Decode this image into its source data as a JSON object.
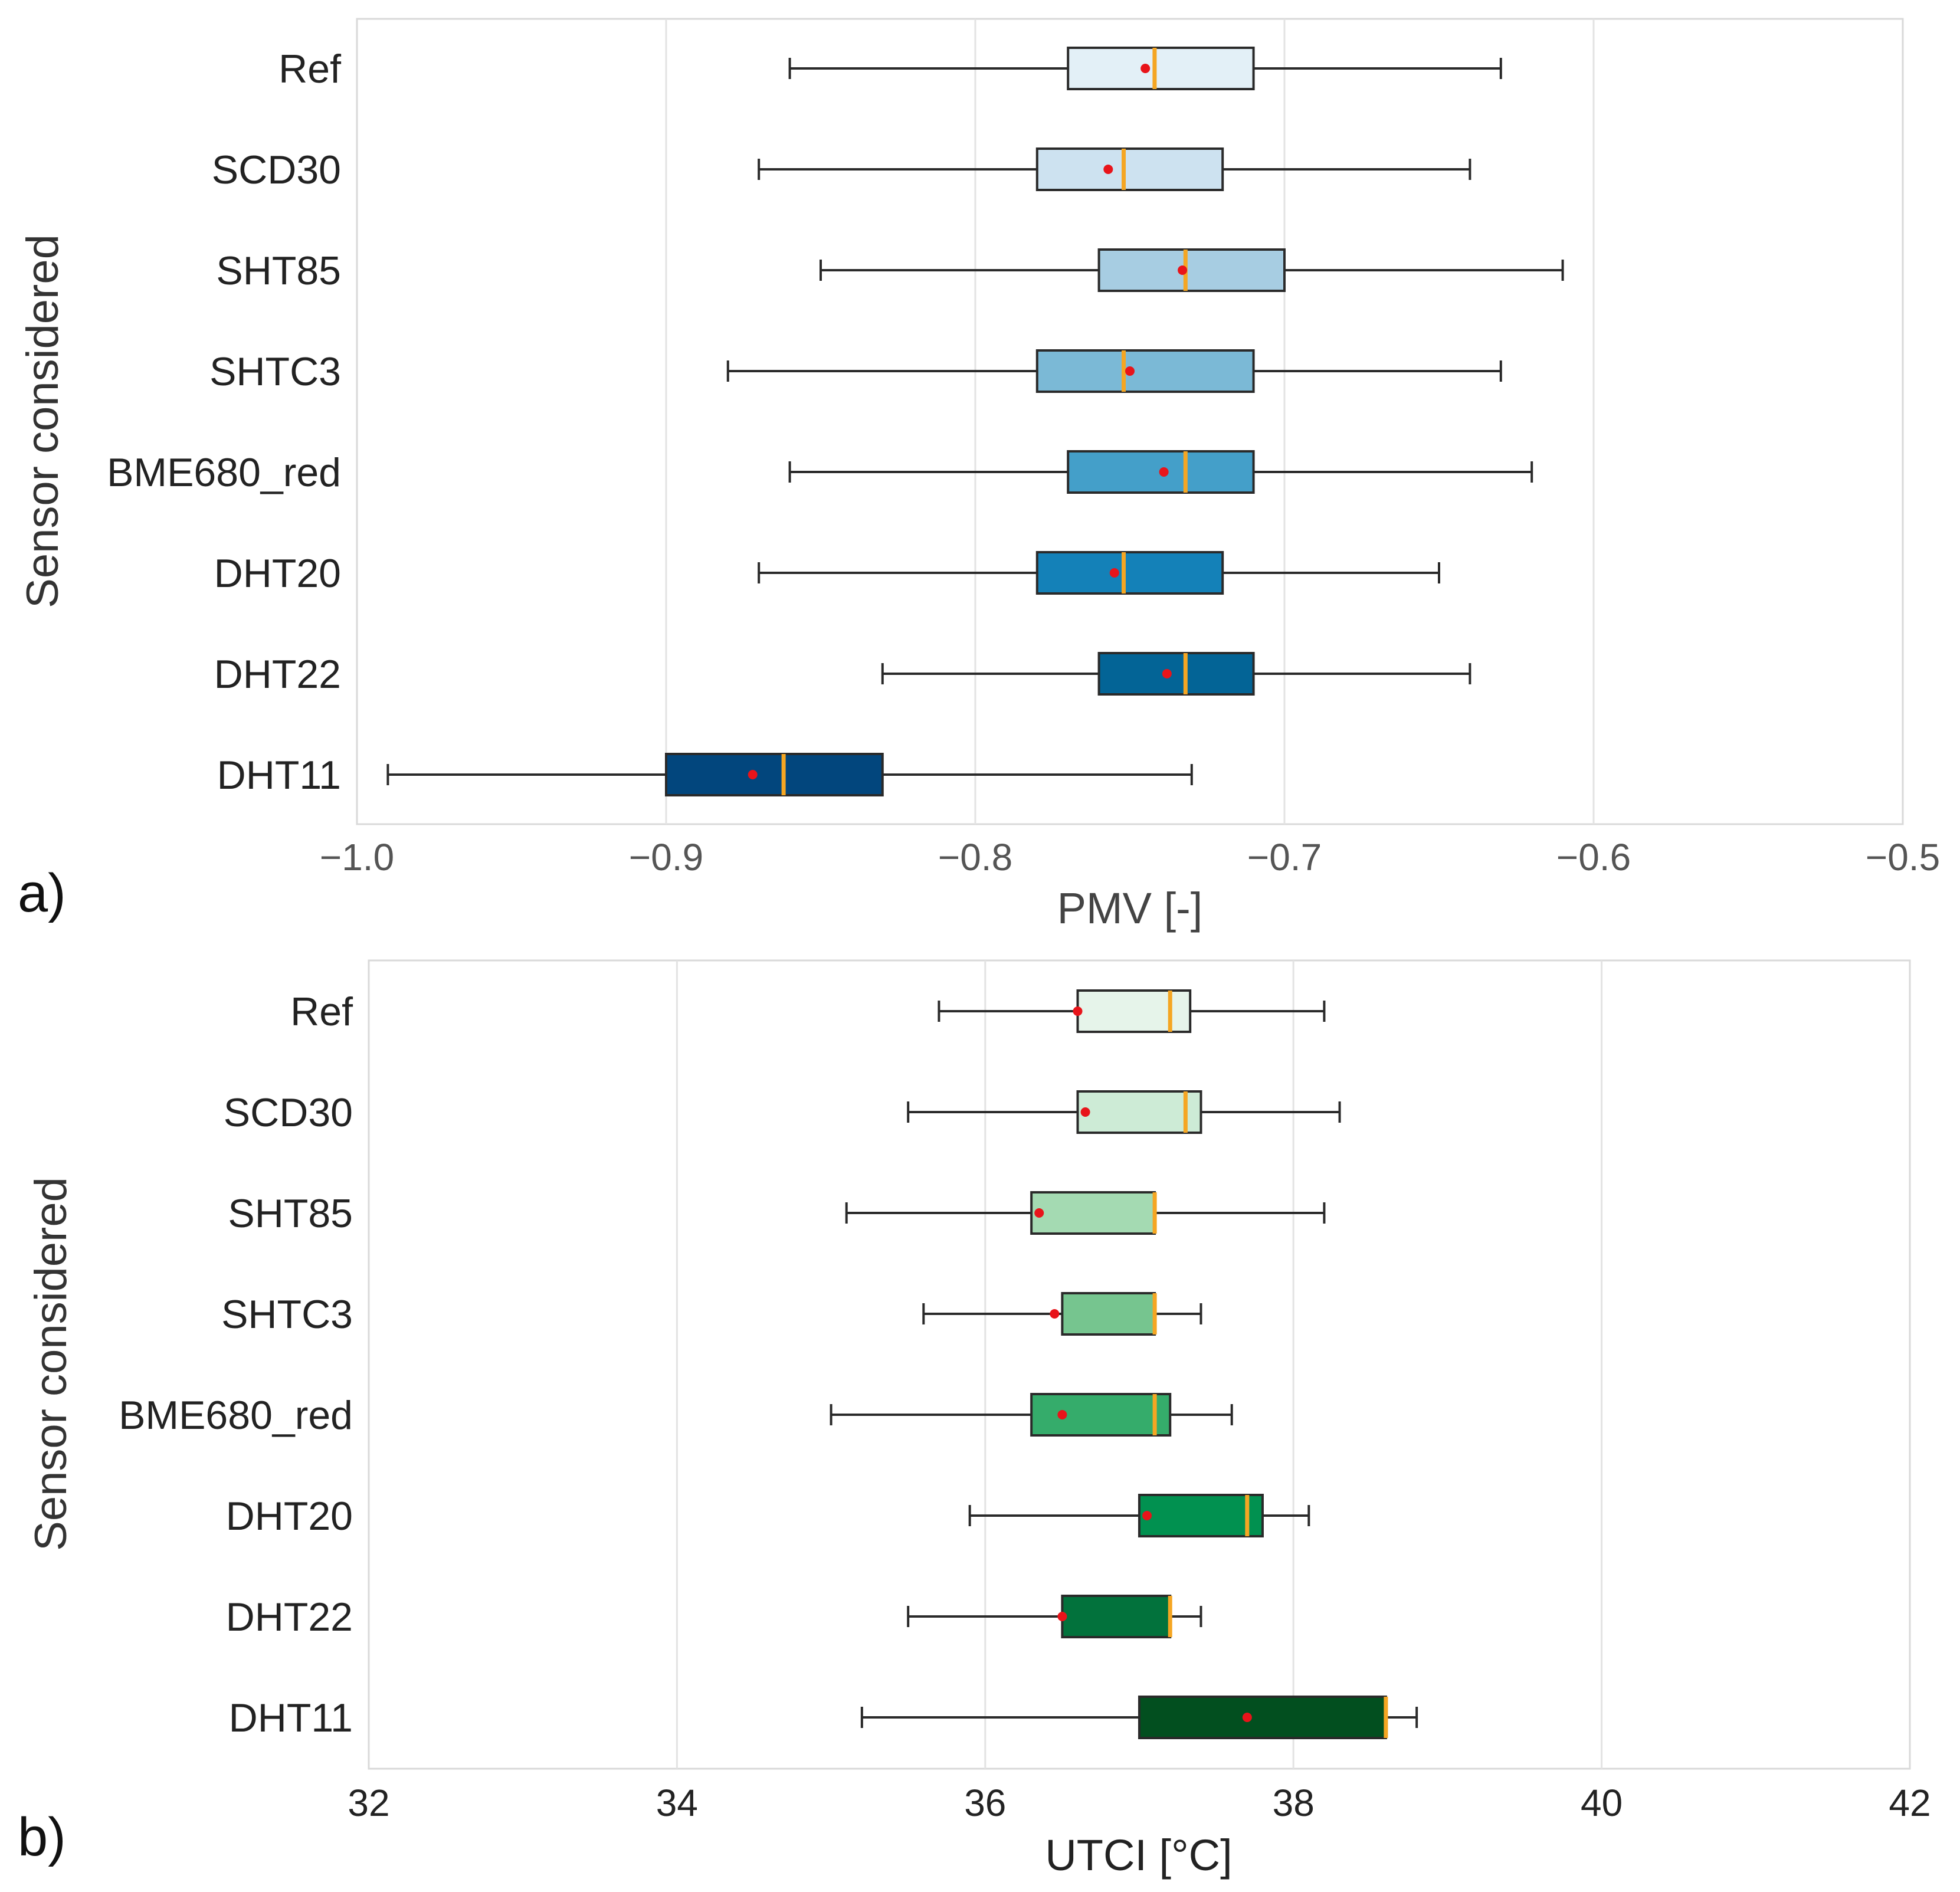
{
  "chart_data": [
    {
      "type": "box",
      "panel_label": "a)",
      "orientation": "horizontal",
      "xlabel": "PMV [-]",
      "ylabel": "Sensor considered",
      "xlim": [
        -1.0,
        -0.5
      ],
      "xticks": [
        -1.0,
        -0.9,
        -0.8,
        -0.7,
        -0.6,
        -0.5
      ],
      "xtick_labels": [
        "−1.0",
        "−0.9",
        "−0.8",
        "−0.7",
        "−0.6",
        "−0.5"
      ],
      "grid": "vertical",
      "median_color": "#f5a623",
      "mean_color": "#e8141a",
      "categories": [
        "Ref",
        "SCD30",
        "SHT85",
        "SHTC3",
        "BME680_red",
        "DHT20",
        "DHT22",
        "DHT11"
      ],
      "series": [
        {
          "name": "Ref",
          "whisker_low": -0.86,
          "q1": -0.77,
          "median": -0.742,
          "q3": -0.71,
          "whisker_high": -0.63,
          "mean": -0.745,
          "color": "#e3f0f7"
        },
        {
          "name": "SCD30",
          "whisker_low": -0.87,
          "q1": -0.78,
          "median": -0.752,
          "q3": -0.72,
          "whisker_high": -0.64,
          "mean": -0.757,
          "color": "#cde2f0"
        },
        {
          "name": "SHT85",
          "whisker_low": -0.85,
          "q1": -0.76,
          "median": -0.732,
          "q3": -0.7,
          "whisker_high": -0.61,
          "mean": -0.733,
          "color": "#a7cde2"
        },
        {
          "name": "SHTC3",
          "whisker_low": -0.88,
          "q1": -0.78,
          "median": -0.752,
          "q3": -0.71,
          "whisker_high": -0.63,
          "mean": -0.75,
          "color": "#7bb9d6"
        },
        {
          "name": "BME680_red",
          "whisker_low": -0.86,
          "q1": -0.77,
          "median": -0.732,
          "q3": -0.71,
          "whisker_high": -0.62,
          "mean": -0.739,
          "color": "#449fc9"
        },
        {
          "name": "DHT20",
          "whisker_low": -0.87,
          "q1": -0.78,
          "median": -0.752,
          "q3": -0.72,
          "whisker_high": -0.65,
          "mean": -0.755,
          "color": "#1481b8"
        },
        {
          "name": "DHT22",
          "whisker_low": -0.83,
          "q1": -0.76,
          "median": -0.732,
          "q3": -0.71,
          "whisker_high": -0.64,
          "mean": -0.738,
          "color": "#036496"
        },
        {
          "name": "DHT11",
          "whisker_low": -0.99,
          "q1": -0.9,
          "median": -0.862,
          "q3": -0.83,
          "whisker_high": -0.73,
          "mean": -0.872,
          "color": "#02467d"
        }
      ]
    },
    {
      "type": "box",
      "panel_label": "b)",
      "orientation": "horizontal",
      "xlabel": "UTCI [°C]",
      "ylabel": "Sensor considered",
      "xlim": [
        32,
        42
      ],
      "xticks": [
        32,
        34,
        36,
        38,
        40,
        42
      ],
      "xtick_labels": [
        "32",
        "34",
        "36",
        "38",
        "40",
        "42"
      ],
      "grid": "vertical",
      "median_color": "#f5a623",
      "mean_color": "#e8141a",
      "categories": [
        "Ref",
        "SCD30",
        "SHT85",
        "SHTC3",
        "BME680_red",
        "DHT20",
        "DHT22",
        "DHT11"
      ],
      "series": [
        {
          "name": "Ref",
          "whisker_low": 35.7,
          "q1": 36.6,
          "median": 37.2,
          "q3": 37.33,
          "whisker_high": 38.2,
          "mean": 36.6,
          "color": "#e6f4ea"
        },
        {
          "name": "SCD30",
          "whisker_low": 35.5,
          "q1": 36.6,
          "median": 37.3,
          "q3": 37.4,
          "whisker_high": 38.3,
          "mean": 36.65,
          "color": "#cdebd6"
        },
        {
          "name": "SHT85",
          "whisker_low": 35.1,
          "q1": 36.3,
          "median": 37.1,
          "q3": 37.1,
          "whisker_high": 38.2,
          "mean": 36.35,
          "color": "#a4dab2"
        },
        {
          "name": "SHTC3",
          "whisker_low": 35.6,
          "q1": 36.5,
          "median": 37.1,
          "q3": 37.1,
          "whisker_high": 37.4,
          "mean": 36.45,
          "color": "#76c58f"
        },
        {
          "name": "BME680_red",
          "whisker_low": 35.0,
          "q1": 36.3,
          "median": 37.1,
          "q3": 37.2,
          "whisker_high": 37.6,
          "mean": 36.5,
          "color": "#35ac6b"
        },
        {
          "name": "DHT20",
          "whisker_low": 35.9,
          "q1": 37.0,
          "median": 37.7,
          "q3": 37.8,
          "whisker_high": 38.1,
          "mean": 37.05,
          "color": "#019150"
        },
        {
          "name": "DHT22",
          "whisker_low": 35.5,
          "q1": 36.5,
          "median": 37.2,
          "q3": 37.2,
          "whisker_high": 37.4,
          "mean": 36.5,
          "color": "#02723c"
        },
        {
          "name": "DHT11",
          "whisker_low": 35.2,
          "q1": 37.0,
          "median": 38.6,
          "q3": 38.6,
          "whisker_high": 38.8,
          "mean": 37.7,
          "color": "#024f1f"
        }
      ]
    }
  ]
}
